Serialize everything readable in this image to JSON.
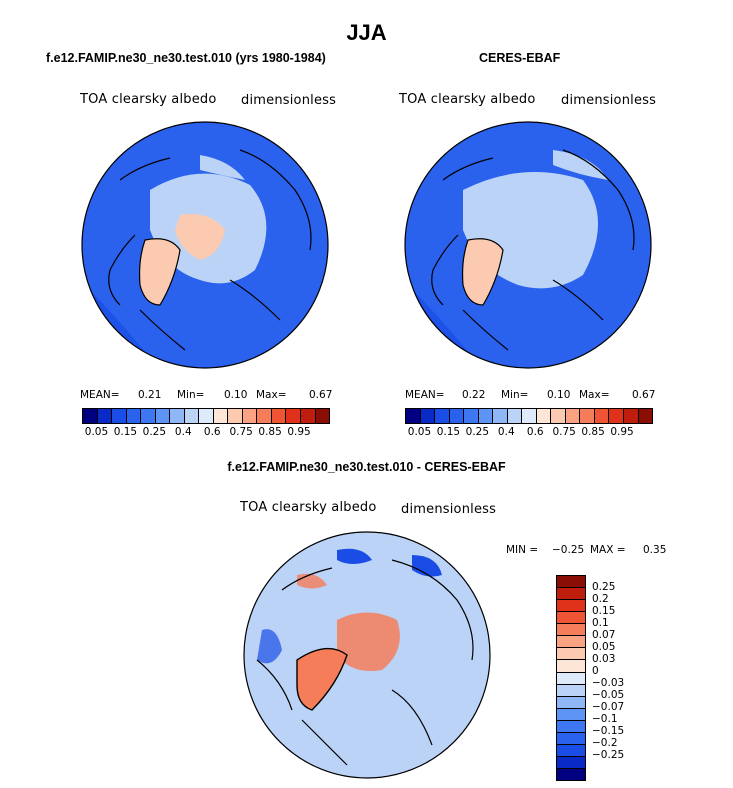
{
  "title": "JJA",
  "panels": {
    "model": {
      "title": "f.e12.FAMIP.ne30_ne30.test.010 (yrs 1980-1984)",
      "variable": "TOA clearsky albedo",
      "units": "dimensionless",
      "mean_label": "MEAN=",
      "mean": "0.21",
      "min_label": "Min=",
      "min": "0.10",
      "max_label": "Max=",
      "max": "0.67"
    },
    "obs": {
      "title": "CERES-EBAF",
      "variable": "TOA clearsky albedo",
      "units": "dimensionless",
      "mean_label": "MEAN=",
      "mean": "0.22",
      "min_label": "Min=",
      "min": "0.10",
      "max_label": "Max=",
      "max": "0.67"
    },
    "diff": {
      "title": "f.e12.FAMIP.ne30_ne30.test.010 - CERES-EBAF",
      "variable": "TOA clearsky albedo",
      "units": "dimensionless",
      "min_label": "MIN =",
      "min": "−0.25",
      "max_label": "MAX =",
      "max": "0.35"
    }
  },
  "colorbar_abs": {
    "colors": [
      "#000080",
      "#0a2ac8",
      "#1a4de6",
      "#2a62ee",
      "#3d78f2",
      "#5e95f4",
      "#8fb6f6",
      "#bcd3f8",
      "#dfeafb",
      "#fde6d6",
      "#fbcab0",
      "#f9a383",
      "#f57d5a",
      "#ef5434",
      "#e0321a",
      "#bf1d0e",
      "#8a0d06"
    ],
    "labels": [
      "0.05",
      "0.15",
      "0.25",
      "0.4",
      "0.6",
      "0.75",
      "0.85",
      "0.95"
    ]
  },
  "colorbar_diff": {
    "colors": [
      "#8a0d06",
      "#bf1d0e",
      "#e0321a",
      "#ef5434",
      "#f57d5a",
      "#f9a383",
      "#fbcab0",
      "#fde6d6",
      "#dfeafb",
      "#bcd3f8",
      "#8fb6f6",
      "#5e95f4",
      "#3d78f2",
      "#2a62ee",
      "#1a4de6",
      "#0a2ac8",
      "#000080"
    ],
    "labels": [
      "0.25",
      "0.2",
      "0.15",
      "0.1",
      "0.07",
      "0.05",
      "0.03",
      "0",
      "−0.03",
      "−0.05",
      "−0.07",
      "−0.1",
      "−0.15",
      "−0.2",
      "−0.25"
    ]
  },
  "colors": {
    "ocean_abs": "#2a62ee",
    "ocean_abs_dark": "#1a4de6",
    "ice_abs": "#bcd3f8",
    "greenland_abs": "#fbcab0",
    "diff_background": "#bcd3f8",
    "diff_positive": "#f57d5a",
    "diff_negative": "#1a4de6"
  }
}
